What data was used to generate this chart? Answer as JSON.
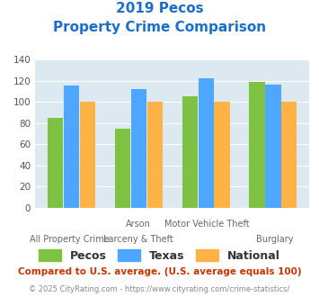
{
  "title_line1": "2019 Pecos",
  "title_line2": "Property Crime Comparison",
  "title_color": "#1a6fcc",
  "pecos": [
    85,
    75,
    105,
    119
  ],
  "texas": [
    115,
    112,
    122,
    116
  ],
  "national": [
    100,
    100,
    100,
    100
  ],
  "pecos_color": "#7dc242",
  "texas_color": "#4da6ff",
  "national_color": "#ffb347",
  "bg_color": "#dce9f0",
  "ylim": [
    0,
    140
  ],
  "yticks": [
    0,
    20,
    40,
    60,
    80,
    100,
    120,
    140
  ],
  "top_labels": [
    "",
    "Arson",
    "Motor Vehicle Theft",
    ""
  ],
  "bot_labels": [
    "All Property Crime",
    "Larceny & Theft",
    "",
    "Burglary"
  ],
  "footnote1": "Compared to U.S. average. (U.S. average equals 100)",
  "footnote2": "© 2025 CityRating.com - https://www.cityrating.com/crime-statistics/",
  "footnote1_color": "#cc3300",
  "footnote2_color": "#888888",
  "legend_labels": [
    "Pecos",
    "Texas",
    "National"
  ]
}
